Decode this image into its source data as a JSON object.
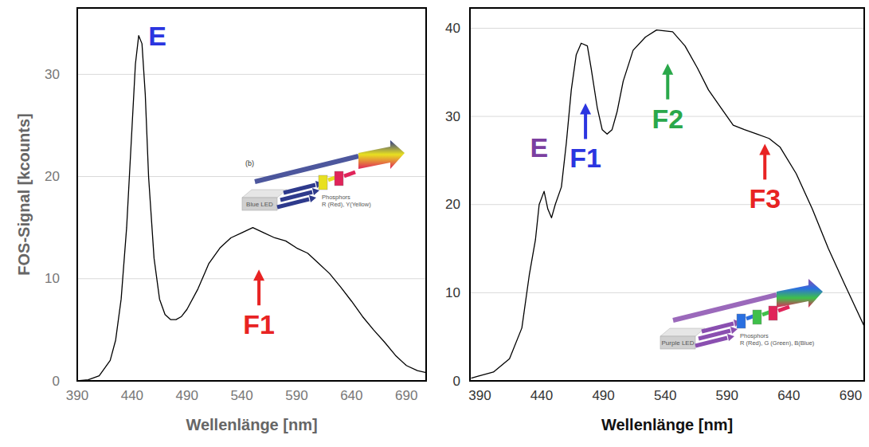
{
  "chart_data": [
    {
      "type": "line",
      "xlabel": "Wellenlänge [nm]",
      "ylabel": "FOS-Signal [kcounts]",
      "x": [
        390,
        400,
        410,
        420,
        425,
        430,
        435,
        440,
        443,
        446,
        449,
        452,
        455,
        460,
        465,
        470,
        475,
        480,
        485,
        490,
        500,
        510,
        520,
        530,
        540,
        550,
        560,
        570,
        580,
        590,
        600,
        610,
        620,
        630,
        640,
        650,
        660,
        670,
        680,
        690,
        700,
        708
      ],
      "series": [
        {
          "color": "#000000",
          "values": [
            0,
            0.1,
            0.5,
            2,
            4,
            8,
            15,
            25,
            31,
            33.8,
            33,
            28,
            20,
            12,
            8,
            6.5,
            6,
            6,
            6.3,
            7,
            9,
            11.5,
            13,
            14,
            14.5,
            15,
            14.5,
            14,
            13.7,
            13,
            12.5,
            11.5,
            10.5,
            9.2,
            7.8,
            6.3,
            5,
            3.8,
            2.5,
            1.5,
            1,
            0.8
          ]
        }
      ],
      "xlim": [
        390,
        708
      ],
      "ylim": [
        0,
        36.5
      ],
      "xticks": [
        390,
        440,
        490,
        540,
        590,
        640,
        690
      ],
      "yticks": [
        0,
        10,
        20,
        30
      ],
      "grid": true,
      "annotations": [
        {
          "text": "E",
          "x": 463,
          "y": 33.8,
          "color": "#2b35e0",
          "marker": "none"
        },
        {
          "text": "F1",
          "x": 555.6,
          "y": 10.9,
          "color": "#e82323",
          "marker": "arrow"
        }
      ],
      "inset": {
        "label": "(b)",
        "led": "Blue LED",
        "phosphors": "Phosphors",
        "phosphor_list": "R (Red), Y(Yellow)",
        "colors": [
          "#2e3a8c",
          "#e8e020",
          "#e0245a"
        ]
      }
    },
    {
      "type": "line",
      "xlabel": "Wellenlänge [nm]",
      "x": [
        383,
        388,
        401,
        414,
        424,
        430,
        435,
        438,
        442,
        445,
        448,
        451,
        456,
        460,
        464,
        468,
        472,
        477,
        480,
        485,
        489,
        493,
        497,
        501,
        506,
        514,
        524,
        533,
        546,
        556,
        566,
        575,
        585,
        595,
        604,
        614,
        624,
        633,
        646,
        659,
        672,
        685,
        695,
        701
      ],
      "series": [
        {
          "color": "#000000",
          "values": [
            0.3,
            0.5,
            1,
            2.5,
            6,
            12,
            16,
            20,
            21.5,
            19.5,
            18.5,
            20,
            22,
            27,
            33,
            37,
            38.3,
            38,
            35.5,
            31,
            28.5,
            28,
            28.5,
            30.5,
            34,
            37.5,
            39,
            39.8,
            39.6,
            38,
            35.5,
            33,
            31,
            29,
            28.5,
            28,
            27.5,
            26.5,
            23.5,
            19.5,
            15,
            11,
            8,
            6.2
          ]
        }
      ],
      "xlim": [
        382,
        701
      ],
      "ylim": [
        0,
        42.3
      ],
      "xticks": [
        390,
        440,
        490,
        540,
        590,
        640,
        690
      ],
      "yticks": [
        0,
        10,
        20,
        30,
        40
      ],
      "grid": true,
      "annotations": [
        {
          "text": "E",
          "x": 438,
          "y": 26.5,
          "color": "#7b3fa0",
          "marker": "none"
        },
        {
          "text": "F1",
          "x": 475.5,
          "y": 31.5,
          "color": "#2b35e0",
          "marker": "arrow"
        },
        {
          "text": "F2",
          "x": 542,
          "y": 36,
          "color": "#2aa84a",
          "marker": "arrow"
        },
        {
          "text": "F3",
          "x": 620.6,
          "y": 26.9,
          "color": "#e82323",
          "marker": "arrow"
        }
      ],
      "inset": {
        "led": "Purple LED",
        "phosphors": "Phosphors",
        "phosphor_list": "R (Red), G (Green), B(Blue)",
        "colors": [
          "#8a4fb0",
          "#2a6fe0",
          "#3fc04a",
          "#e0245a"
        ]
      }
    }
  ]
}
